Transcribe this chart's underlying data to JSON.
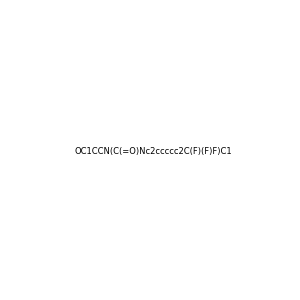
{
  "smiles": "OC1CCN(C(=O)Nc2ccccc2C(F)(F)F)C1",
  "image_size": 300,
  "background_color": "#f0f0f0"
}
